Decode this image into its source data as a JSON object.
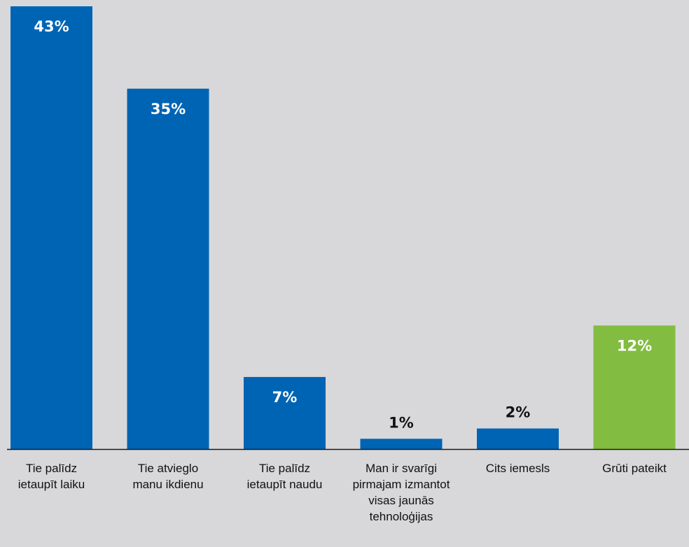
{
  "chart_data": {
    "type": "bar",
    "categories": [
      [
        "Tie palīdz",
        "ietaupīt laiku"
      ],
      [
        "Tie atvieglo",
        "manu ikdienu"
      ],
      [
        "Tie palīdz",
        "ietaupīt naudu"
      ],
      [
        "Man ir svarīgi",
        "pirmajam izmantot",
        "visas jaunās",
        "tehnoloģijas"
      ],
      [
        "Cits iemesls"
      ],
      [
        "Grūti pateikt"
      ]
    ],
    "values": [
      43,
      35,
      7,
      1,
      2,
      12
    ],
    "value_labels": [
      "43%",
      "35%",
      "7%",
      "1%",
      "2%",
      "12%"
    ],
    "ylim": [
      0,
      43
    ],
    "grid": false,
    "colors": [
      "#0064b4",
      "#0064b4",
      "#0064b4",
      "#0064b4",
      "#0064b4",
      "#82bc41"
    ],
    "label_colors": {
      "inside": "#ffffff",
      "outside": "#111111"
    },
    "axis_color": "#1a1a1a"
  }
}
